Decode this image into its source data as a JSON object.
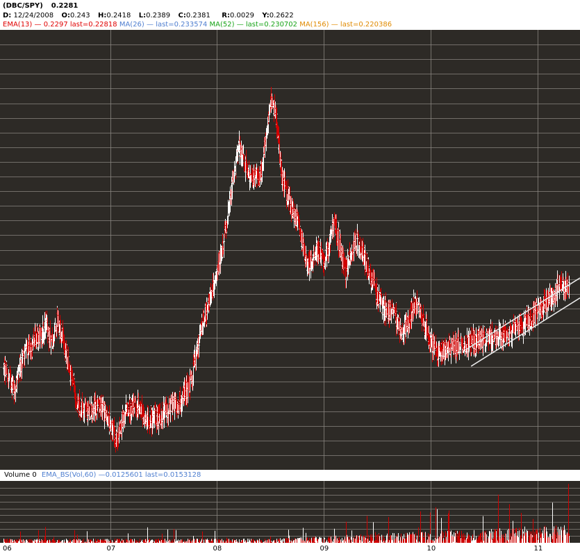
{
  "header": {
    "symbol": "(DBC/SPY)",
    "last_value": "0.2281",
    "date_label": "D:",
    "date": "12/24/2008",
    "open_label": "O:",
    "open": "0.243",
    "high_label": "H:",
    "high": "0.2418",
    "low_label": "L:",
    "low": "0.2389",
    "close_label": "C:",
    "close": "0.2381",
    "range_label": "R:",
    "range": "0.0029",
    "y_label": "Y:",
    "y": "0.2622"
  },
  "indicators": [
    {
      "name": "EMA(13)",
      "text": "— 0.2297 last=0.22818",
      "color": "#e00000"
    },
    {
      "name": "MA(26)",
      "text": "— last=0.233574",
      "color": "#4f7fd0"
    },
    {
      "name": "MA(52)",
      "text": "— last=0.230702",
      "color": "#18a418"
    },
    {
      "name": "MA(156)",
      "text": "— last=0.220386",
      "color": "#e08a00"
    }
  ],
  "volume_panel": {
    "label": "Volume 0",
    "ema_name": "EMA_BS(Vol,60)",
    "ema_value": "0.0125601",
    "ema_last": "last=0.0153128",
    "ema_color": "#4f7fd0"
  },
  "colors": {
    "background": "#2d2a26",
    "grid": "#8a8680",
    "bar_up": "#ffffff",
    "bar_down": "#d00000",
    "channel": "#e8e8e8"
  },
  "chart_data": {
    "type": "line",
    "title": "(DBC/SPY)",
    "series_style": "ohlc-bars",
    "grid": true,
    "x_ticks": [
      "06",
      "07",
      "08",
      "09",
      "10",
      "11"
    ],
    "x": [
      2006.0,
      2006.1,
      2006.2,
      2006.3,
      2006.4,
      2006.45,
      2006.5,
      2006.55,
      2006.6,
      2006.7,
      2006.8,
      2006.9,
      2007.0,
      2007.05,
      2007.15,
      2007.25,
      2007.35,
      2007.45,
      2007.55,
      2007.65,
      2007.75,
      2007.8,
      2007.85,
      2007.9,
      2008.0,
      2008.1,
      2008.2,
      2008.3,
      2008.4,
      2008.5,
      2008.55,
      2008.6,
      2008.7,
      2008.75,
      2008.85,
      2008.95,
      2009.0,
      2009.1,
      2009.2,
      2009.3,
      2009.35,
      2009.45,
      2009.55,
      2009.65,
      2009.75,
      2009.85,
      2009.95,
      2010.0,
      2010.05,
      2010.15,
      2010.3,
      2010.45,
      2010.6,
      2010.75,
      2010.85,
      2010.95,
      2011.05,
      2011.15,
      2011.2,
      2011.25,
      2011.3
    ],
    "values": [
      0.185,
      0.178,
      0.191,
      0.195,
      0.199,
      0.194,
      0.202,
      0.196,
      0.187,
      0.172,
      0.17,
      0.172,
      0.166,
      0.16,
      0.171,
      0.172,
      0.167,
      0.168,
      0.171,
      0.173,
      0.18,
      0.189,
      0.199,
      0.205,
      0.218,
      0.238,
      0.262,
      0.252,
      0.25,
      0.278,
      0.273,
      0.252,
      0.24,
      0.236,
      0.22,
      0.227,
      0.221,
      0.236,
      0.218,
      0.23,
      0.226,
      0.215,
      0.206,
      0.204,
      0.197,
      0.208,
      0.2,
      0.194,
      0.19,
      0.192,
      0.193,
      0.195,
      0.196,
      0.198,
      0.199,
      0.203,
      0.206,
      0.21,
      0.214,
      0.213,
      0.212
    ],
    "ylim": [
      0.15,
      0.302
    ],
    "volume": {
      "ylim": [
        0,
        0.1
      ]
    }
  }
}
